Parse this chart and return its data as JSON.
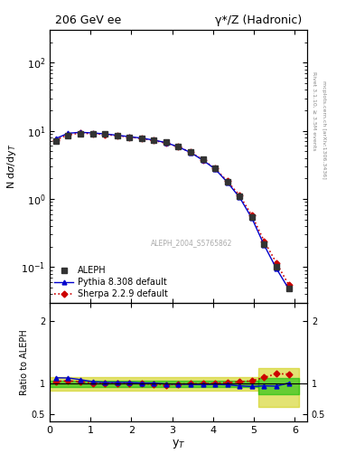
{
  "title_left": "206 GeV ee",
  "title_right": "γ*/Z (Hadronic)",
  "ylabel_main": "N dσ/dy_T",
  "ylabel_ratio": "Ratio to ALEPH",
  "xlabel": "y_T",
  "right_label_top": "Rivet 3.1.10, ≥ 3.5M events",
  "right_label_bot": "mcplots.cern.ch [arXiv:1306.3436]",
  "watermark": "ALEPH_2004_S5765862",
  "ylim_main": [
    0.03,
    300
  ],
  "ylim_ratio": [
    0.38,
    2.3
  ],
  "xlim": [
    0.0,
    6.3
  ],
  "xticks": [
    0,
    1,
    2,
    3,
    4,
    5,
    6
  ],
  "aleph_x": [
    0.15,
    0.45,
    0.75,
    1.05,
    1.35,
    1.65,
    1.95,
    2.25,
    2.55,
    2.85,
    3.15,
    3.45,
    3.75,
    4.05,
    4.35,
    4.65,
    4.95,
    5.25,
    5.55,
    5.85
  ],
  "aleph_y": [
    7.1,
    8.5,
    9.0,
    9.1,
    8.9,
    8.5,
    8.1,
    7.8,
    7.3,
    6.8,
    5.9,
    4.9,
    3.8,
    2.8,
    1.8,
    1.1,
    0.55,
    0.22,
    0.1,
    0.048
  ],
  "aleph_yerr": [
    0.28,
    0.28,
    0.28,
    0.28,
    0.28,
    0.28,
    0.28,
    0.28,
    0.28,
    0.28,
    0.22,
    0.18,
    0.14,
    0.11,
    0.07,
    0.045,
    0.022,
    0.009,
    0.005,
    0.003
  ],
  "pythia_x": [
    0.15,
    0.45,
    0.75,
    1.05,
    1.35,
    1.65,
    1.95,
    2.25,
    2.55,
    2.85,
    3.15,
    3.45,
    3.75,
    4.05,
    4.35,
    4.65,
    4.95,
    5.25,
    5.55,
    5.85
  ],
  "pythia_y": [
    7.7,
    9.2,
    9.5,
    9.3,
    9.0,
    8.6,
    8.2,
    7.8,
    7.3,
    6.7,
    5.8,
    4.8,
    3.7,
    2.75,
    1.75,
    1.05,
    0.52,
    0.21,
    0.095,
    0.048
  ],
  "sherpa_x": [
    0.15,
    0.45,
    0.75,
    1.05,
    1.35,
    1.65,
    1.95,
    2.25,
    2.55,
    2.85,
    3.15,
    3.45,
    3.75,
    4.05,
    4.35,
    4.65,
    4.95,
    5.25,
    5.55,
    5.85
  ],
  "sherpa_y": [
    7.3,
    8.8,
    9.2,
    9.1,
    8.8,
    8.5,
    8.1,
    7.7,
    7.2,
    6.6,
    5.8,
    4.85,
    3.75,
    2.8,
    1.82,
    1.12,
    0.57,
    0.24,
    0.115,
    0.055
  ],
  "pythia_ratio": [
    1.085,
    1.082,
    1.056,
    1.022,
    1.011,
    1.012,
    1.012,
    1.0,
    1.0,
    0.985,
    0.983,
    0.98,
    0.974,
    0.982,
    0.972,
    0.955,
    0.945,
    0.955,
    0.95,
    1.0
  ],
  "sherpa_ratio": [
    1.028,
    1.035,
    1.022,
    1.0,
    0.989,
    1.0,
    1.0,
    0.987,
    0.986,
    0.971,
    0.983,
    0.99,
    0.987,
    1.0,
    1.011,
    1.018,
    1.036,
    1.091,
    1.15,
    1.146
  ],
  "aleph_color": "#333333",
  "pythia_color": "#0000cc",
  "sherpa_color": "#cc0000",
  "green_color": "#00bb00",
  "yellow_color": "#cccc00",
  "bg_color": "#ffffff"
}
